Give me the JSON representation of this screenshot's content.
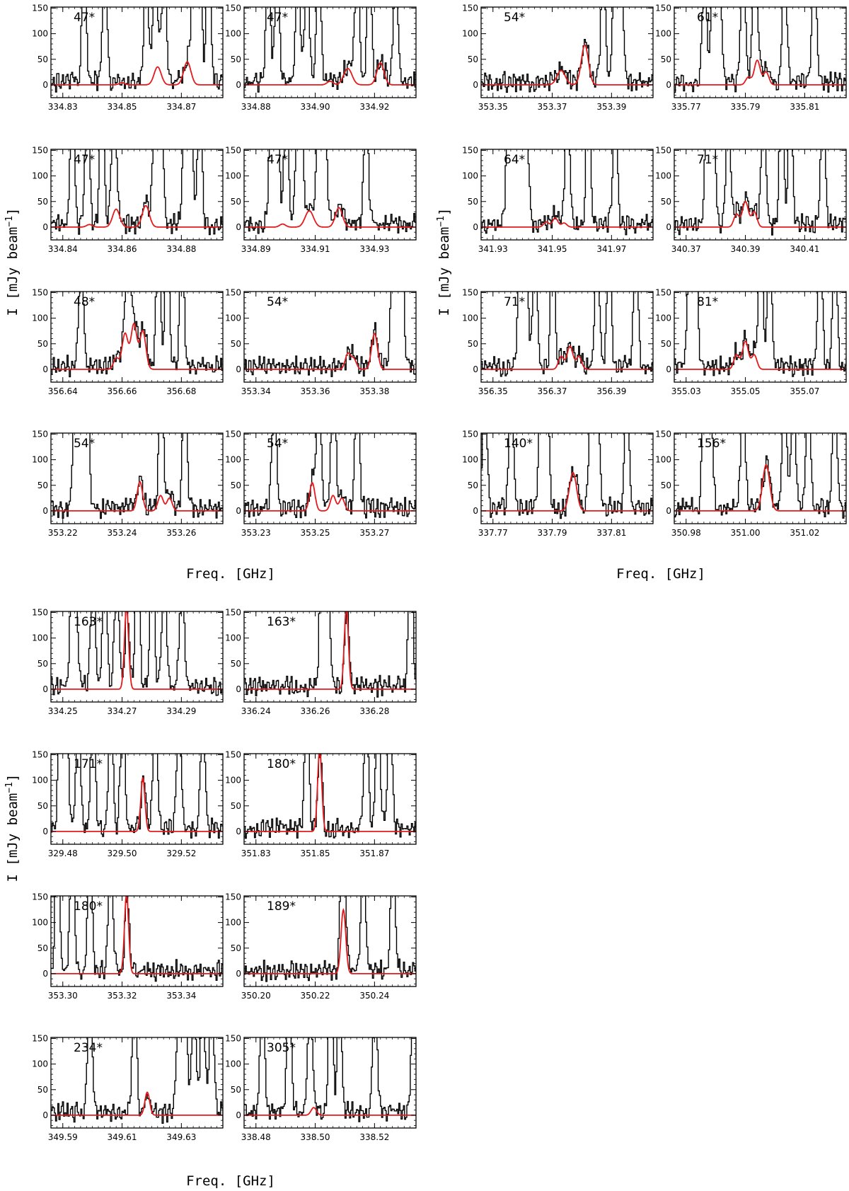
{
  "figure": {
    "ylabel": "I [mJy beam",
    "ylabel_sup": "−1",
    "ylabel_close": "]",
    "xlabel": "Freq. [GHz]"
  },
  "colors": {
    "observed": "#000000",
    "model": "#e41a1c",
    "frame": "#000000"
  },
  "chart_data": [
    {
      "type": "line",
      "label": "47*",
      "xlim": [
        334.826,
        334.884
      ],
      "ylim": [
        -25,
        152
      ],
      "yticks": [
        0,
        50,
        100,
        150
      ],
      "xticks": [
        334.83,
        334.85,
        334.87
      ],
      "models": [
        {
          "center": 334.862,
          "amp": 35,
          "sigma": 0.0012
        },
        {
          "center": 334.872,
          "amp": 45,
          "sigma": 0.0012
        },
        {
          "center": 334.85,
          "amp": 4,
          "sigma": 0.001
        }
      ],
      "obs_peaks": [
        334.837,
        334.844,
        334.858,
        334.861,
        334.864,
        334.874,
        334.876,
        334.879
      ]
    },
    {
      "type": "line",
      "label": "47*",
      "xlim": [
        334.876,
        334.934
      ],
      "ylim": [
        -25,
        152
      ],
      "yticks": [
        0,
        50,
        100,
        150
      ],
      "xticks": [
        334.88,
        334.9,
        334.92
      ],
      "models": [
        {
          "center": 334.905,
          "amp": 7,
          "sigma": 0.001
        },
        {
          "center": 334.911,
          "amp": 32,
          "sigma": 0.0014
        },
        {
          "center": 334.922,
          "amp": 43,
          "sigma": 0.0012
        }
      ],
      "obs_peaks": [
        334.884,
        334.887,
        334.894,
        334.897,
        334.901,
        334.914,
        334.918,
        334.927
      ]
    },
    {
      "type": "line",
      "label": "54*",
      "xlim": [
        353.346,
        353.404
      ],
      "ylim": [
        -25,
        152
      ],
      "yticks": [
        0,
        50,
        100,
        150
      ],
      "xticks": [
        353.35,
        353.37,
        353.39
      ],
      "models": [
        {
          "center": 353.373,
          "amp": 28,
          "sigma": 0.0014
        },
        {
          "center": 353.381,
          "amp": 78,
          "sigma": 0.0012
        }
      ],
      "obs_peaks": [
        353.387,
        353.391,
        353.393
      ]
    },
    {
      "type": "line",
      "label": "61*",
      "xlim": [
        335.766,
        335.824
      ],
      "ylim": [
        -25,
        152
      ],
      "yticks": [
        0,
        50,
        100,
        150
      ],
      "xticks": [
        335.77,
        335.79,
        335.81
      ],
      "models": [
        {
          "center": 335.791,
          "amp": 15,
          "sigma": 0.0009
        },
        {
          "center": 335.794,
          "amp": 48,
          "sigma": 0.001
        },
        {
          "center": 335.797,
          "amp": 25,
          "sigma": 0.0009
        }
      ],
      "obs_peaks": [
        335.776,
        335.779,
        335.781,
        335.789,
        335.793,
        335.803,
        335.813
      ]
    },
    {
      "type": "line",
      "label": "47*",
      "xlim": [
        334.836,
        334.894
      ],
      "ylim": [
        -25,
        152
      ],
      "yticks": [
        0,
        50,
        100,
        150
      ],
      "xticks": [
        334.84,
        334.86,
        334.88
      ],
      "models": [
        {
          "center": 334.849,
          "amp": 5,
          "sigma": 0.001
        },
        {
          "center": 334.858,
          "amp": 35,
          "sigma": 0.0012
        },
        {
          "center": 334.868,
          "amp": 42,
          "sigma": 0.0012
        }
      ],
      "obs_peaks": [
        334.843,
        334.848,
        334.853,
        334.857,
        334.871,
        334.873,
        334.881,
        334.883,
        334.886
      ]
    },
    {
      "type": "line",
      "label": "47*",
      "xlim": [
        334.886,
        334.944
      ],
      "ylim": [
        -25,
        152
      ],
      "yticks": [
        0,
        50,
        100,
        150
      ],
      "xticks": [
        334.89,
        334.91,
        334.93
      ],
      "models": [
        {
          "center": 334.899,
          "amp": 6,
          "sigma": 0.001
        },
        {
          "center": 334.908,
          "amp": 32,
          "sigma": 0.0014
        },
        {
          "center": 334.918,
          "amp": 38,
          "sigma": 0.0012
        }
      ],
      "obs_peaks": [
        334.895,
        334.897,
        334.9,
        334.904,
        334.905,
        334.911,
        334.913,
        334.927
      ]
    },
    {
      "type": "line",
      "label": "64*",
      "xlim": [
        341.926,
        341.984
      ],
      "ylim": [
        -25,
        152
      ],
      "yticks": [
        0,
        50,
        100,
        150
      ],
      "xticks": [
        341.93,
        341.95,
        341.97
      ],
      "models": [
        {
          "center": 341.948,
          "amp": 10,
          "sigma": 0.0009
        },
        {
          "center": 341.951,
          "amp": 18,
          "sigma": 0.0009
        },
        {
          "center": 341.954,
          "amp": 8,
          "sigma": 0.0009
        }
      ],
      "obs_peaks": [
        341.935,
        341.937,
        341.939,
        341.941,
        341.955,
        341.962,
        341.971
      ]
    },
    {
      "type": "line",
      "label": "71*",
      "xlim": [
        340.366,
        340.424
      ],
      "ylim": [
        -25,
        152
      ],
      "yticks": [
        0,
        50,
        100,
        150
      ],
      "xticks": [
        340.37,
        340.39,
        340.41
      ],
      "models": [
        {
          "center": 340.387,
          "amp": 25,
          "sigma": 0.0009
        },
        {
          "center": 340.39,
          "amp": 50,
          "sigma": 0.001
        },
        {
          "center": 340.393,
          "amp": 30,
          "sigma": 0.0009
        }
      ],
      "obs_peaks": [
        340.377,
        340.379,
        340.384,
        340.396,
        340.402,
        340.405,
        340.416
      ]
    },
    {
      "type": "line",
      "label": "48*",
      "xlim": [
        356.636,
        356.694
      ],
      "ylim": [
        -25,
        152
      ],
      "yticks": [
        0,
        50,
        100,
        150
      ],
      "xticks": [
        356.64,
        356.66,
        356.68
      ],
      "models": [
        {
          "center": 356.658,
          "amp": 22,
          "sigma": 0.0009
        },
        {
          "center": 356.661,
          "amp": 70,
          "sigma": 0.001
        },
        {
          "center": 356.664,
          "amp": 88,
          "sigma": 0.001
        },
        {
          "center": 356.667,
          "amp": 75,
          "sigma": 0.001
        }
      ],
      "obs_peaks": [
        356.646,
        356.662,
        356.672,
        356.675,
        356.68
      ]
    },
    {
      "type": "line",
      "label": "54*",
      "xlim": [
        353.336,
        353.394
      ],
      "ylim": [
        -25,
        152
      ],
      "yticks": [
        0,
        50,
        100,
        150
      ],
      "xticks": [
        353.34,
        353.36,
        353.38
      ],
      "models": [
        {
          "center": 353.371,
          "amp": 30,
          "sigma": 0.0009
        },
        {
          "center": 353.373,
          "amp": 20,
          "sigma": 0.0009
        },
        {
          "center": 353.38,
          "amp": 70,
          "sigma": 0.001
        }
      ],
      "obs_peaks": [
        353.386,
        353.388,
        353.389
      ]
    },
    {
      "type": "line",
      "label": "71*",
      "xlim": [
        356.346,
        356.404
      ],
      "ylim": [
        -25,
        152
      ],
      "yticks": [
        0,
        50,
        100,
        150
      ],
      "xticks": [
        356.35,
        356.37,
        356.39
      ],
      "models": [
        {
          "center": 356.373,
          "amp": 25,
          "sigma": 0.0009
        },
        {
          "center": 356.376,
          "amp": 45,
          "sigma": 0.001
        },
        {
          "center": 356.379,
          "amp": 25,
          "sigma": 0.0009
        }
      ],
      "obs_peaks": [
        356.359,
        356.361,
        356.364,
        356.37,
        356.385,
        356.389,
        356.398
      ]
    },
    {
      "type": "line",
      "label": "81*",
      "xlim": [
        355.026,
        355.084
      ],
      "ylim": [
        -25,
        152
      ],
      "yticks": [
        0,
        50,
        100,
        150
      ],
      "xticks": [
        355.03,
        355.05,
        355.07
      ],
      "models": [
        {
          "center": 355.047,
          "amp": 28,
          "sigma": 0.0009
        },
        {
          "center": 355.05,
          "amp": 55,
          "sigma": 0.001
        },
        {
          "center": 355.053,
          "amp": 28,
          "sigma": 0.0009
        }
      ],
      "obs_peaks": [
        355.031,
        355.033,
        355.055,
        355.058,
        355.075,
        355.08
      ]
    },
    {
      "type": "line",
      "label": "54*",
      "xlim": [
        353.216,
        353.274
      ],
      "ylim": [
        -25,
        152
      ],
      "yticks": [
        0,
        50,
        100,
        150
      ],
      "xticks": [
        353.22,
        353.24,
        353.26
      ],
      "models": [
        {
          "center": 353.246,
          "amp": 57,
          "sigma": 0.0009
        },
        {
          "center": 353.253,
          "amp": 30,
          "sigma": 0.0009
        },
        {
          "center": 353.256,
          "amp": 25,
          "sigma": 0.0009
        }
      ],
      "obs_peaks": [
        353.224,
        353.226,
        353.227,
        353.228,
        353.253,
        353.261
      ]
    },
    {
      "type": "line",
      "label": "54*",
      "xlim": [
        353.226,
        353.284
      ],
      "ylim": [
        -25,
        152
      ],
      "yticks": [
        0,
        50,
        100,
        150
      ],
      "xticks": [
        353.23,
        353.25,
        353.27
      ],
      "models": [
        {
          "center": 353.249,
          "amp": 55,
          "sigma": 0.0009
        },
        {
          "center": 353.256,
          "amp": 30,
          "sigma": 0.0009
        },
        {
          "center": 353.259,
          "amp": 25,
          "sigma": 0.0009
        }
      ],
      "obs_peaks": [
        353.236,
        353.251,
        353.256,
        353.264
      ]
    },
    {
      "type": "line",
      "label": "140*",
      "xlim": [
        337.766,
        337.824
      ],
      "ylim": [
        -25,
        152
      ],
      "yticks": [
        0,
        50,
        100,
        150
      ],
      "xticks": [
        337.77,
        337.79,
        337.81
      ],
      "models": [
        {
          "center": 337.797,
          "amp": 75,
          "sigma": 0.0012
        }
      ],
      "obs_peaks": [
        337.767,
        337.776,
        337.786,
        337.788,
        337.803,
        337.805,
        337.815
      ]
    },
    {
      "type": "line",
      "label": "156*",
      "xlim": [
        350.976,
        351.034
      ],
      "ylim": [
        -25,
        152
      ],
      "yticks": [
        0,
        50,
        100,
        150
      ],
      "xticks": [
        350.98,
        351.0,
        351.02
      ],
      "models": [
        {
          "center": 351.007,
          "amp": 90,
          "sigma": 0.0012
        }
      ],
      "obs_peaks": [
        350.986,
        350.988,
        350.999,
        351.013,
        351.016,
        351.021,
        351.03
      ]
    },
    {
      "type": "line",
      "label": "163*",
      "xlim": [
        334.246,
        334.304
      ],
      "ylim": [
        -25,
        152
      ],
      "yticks": [
        0,
        50,
        100,
        150
      ],
      "xticks": [
        334.25,
        334.27,
        334.29
      ],
      "models": [
        {
          "center": 334.2715,
          "amp": 160,
          "sigma": 0.0007
        }
      ],
      "obs_peaks": [
        334.253,
        334.254,
        334.26,
        334.264,
        334.268,
        334.275,
        334.28,
        334.284,
        334.29
      ]
    },
    {
      "type": "line",
      "label": "163*",
      "xlim": [
        336.236,
        336.294
      ],
      "ylim": [
        -25,
        152
      ],
      "yticks": [
        0,
        50,
        100,
        150
      ],
      "xticks": [
        336.24,
        336.26,
        336.28
      ],
      "models": [
        {
          "center": 336.2705,
          "amp": 160,
          "sigma": 0.0007
        }
      ],
      "obs_peaks": [
        336.262,
        336.264,
        336.292
      ]
    },
    {
      "type": "line",
      "label": "171*",
      "xlim": [
        329.476,
        329.534
      ],
      "ylim": [
        -25,
        152
      ],
      "yticks": [
        0,
        50,
        100,
        150
      ],
      "xticks": [
        329.48,
        329.5,
        329.52
      ],
      "models": [
        {
          "center": 329.507,
          "amp": 105,
          "sigma": 0.0007
        }
      ],
      "obs_peaks": [
        329.479,
        329.481,
        329.485,
        329.49,
        329.496,
        329.5,
        329.511,
        329.519,
        329.527
      ]
    },
    {
      "type": "line",
      "label": "180*",
      "xlim": [
        351.826,
        351.884
      ],
      "ylim": [
        -25,
        152
      ],
      "yticks": [
        0,
        50,
        100,
        150
      ],
      "xticks": [
        351.83,
        351.85,
        351.87
      ],
      "models": [
        {
          "center": 351.8515,
          "amp": 160,
          "sigma": 0.0007
        }
      ],
      "obs_peaks": [
        351.847,
        351.867,
        351.871,
        351.875
      ]
    },
    {
      "type": "line",
      "label": "180*",
      "xlim": [
        353.296,
        353.354
      ],
      "ylim": [
        -25,
        152
      ],
      "yticks": [
        0,
        50,
        100,
        150
      ],
      "xticks": [
        353.3,
        353.32,
        353.34
      ],
      "models": [
        {
          "center": 353.3215,
          "amp": 155,
          "sigma": 0.0007
        }
      ],
      "obs_peaks": [
        353.298,
        353.303,
        353.309,
        353.316
      ]
    },
    {
      "type": "line",
      "label": "189*",
      "xlim": [
        350.196,
        350.254
      ],
      "ylim": [
        -25,
        152
      ],
      "yticks": [
        0,
        50,
        100,
        150
      ],
      "xticks": [
        350.2,
        350.22,
        350.24
      ],
      "models": [
        {
          "center": 350.2295,
          "amp": 125,
          "sigma": 0.0008
        }
      ],
      "obs_peaks": [
        350.229,
        350.236,
        350.246
      ]
    },
    {
      "type": "line",
      "label": "234*",
      "xlim": [
        349.586,
        349.644
      ],
      "ylim": [
        -25,
        152
      ],
      "yticks": [
        0,
        50,
        100,
        150
      ],
      "xticks": [
        349.59,
        349.61,
        349.63
      ],
      "models": [
        {
          "center": 349.6185,
          "amp": 45,
          "sigma": 0.0008
        }
      ],
      "obs_peaks": [
        349.599,
        349.614,
        349.629,
        349.631,
        349.634,
        349.637,
        349.64
      ]
    },
    {
      "type": "line",
      "label": "305*",
      "xlim": [
        338.476,
        338.534
      ],
      "ylim": [
        -25,
        152
      ],
      "yticks": [
        0,
        50,
        100,
        150
      ],
      "xticks": [
        338.48,
        338.5,
        338.52
      ],
      "models": [
        {
          "center": 338.4995,
          "amp": 15,
          "sigma": 0.0009
        }
      ],
      "obs_peaks": [
        338.482,
        338.491,
        338.498,
        338.505,
        338.508,
        338.52,
        338.533
      ]
    }
  ]
}
